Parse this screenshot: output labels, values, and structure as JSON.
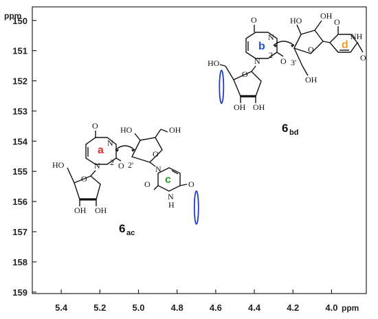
{
  "chart_data": {
    "type": "scatter",
    "xlabel": "ppm",
    "ylabel": "ppm",
    "xlim": [
      5.55,
      3.82
    ],
    "ylim": [
      149.55,
      159.05
    ],
    "x_ticks": [
      "5.4",
      "5.2",
      "5.0",
      "4.8",
      "4.6",
      "4.4",
      "4.2",
      "4.0"
    ],
    "y_ticks": [
      "150",
      "151",
      "152",
      "153",
      "154",
      "155",
      "156",
      "157",
      "158",
      "159"
    ],
    "grid": false,
    "series": [
      {
        "color": "#1f3cc8",
        "points": [
          {
            "x": 4.57,
            "y": 152.2
          },
          {
            "x": 4.7,
            "y": 156.2
          }
        ]
      }
    ],
    "annotations": {
      "compound_1": {
        "label": "6",
        "subscript": "bd"
      },
      "compound_2": {
        "label": "6",
        "subscript": "ac"
      },
      "ring_letters": {
        "a": {
          "text": "a",
          "color": "#e03030"
        },
        "b": {
          "text": "b",
          "color": "#2050d0"
        },
        "c": {
          "text": "c",
          "color": "#2a9a2a"
        },
        "d": {
          "text": "d",
          "color": "#f0a020"
        }
      },
      "atoms": {
        "O": "O",
        "N": "N",
        "NH": "NH",
        "H": "H",
        "HO": "HO",
        "OH": "OH",
        "two": "2",
        "two_prime": "2'",
        "three_prime": "3'"
      }
    }
  }
}
